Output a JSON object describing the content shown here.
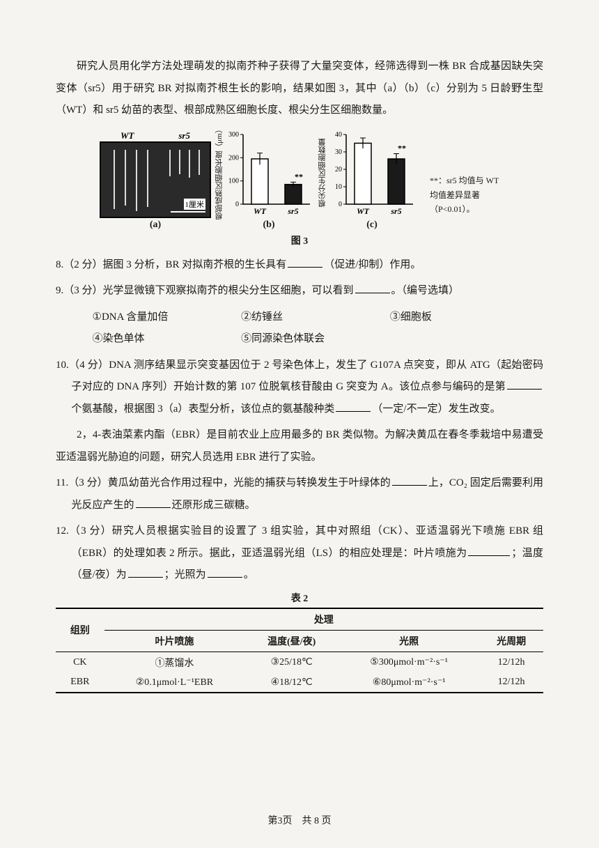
{
  "intro1": "研究人员用化学方法处理萌发的拟南芥种子获得了大量突变体，经筛选得到一株 BR 合成基因缺失突变体（sr5）用于研究 BR 对拟南芥根生长的影响，结果如图 3，其中（a）（b）（c）分别为 5 日龄野生型（WT）和 sr5 幼苗的表型、根部成熟区细胞长度、根尖分生区细胞数量。",
  "photo": {
    "wt": "WT",
    "sr5": "sr5",
    "scale": "1厘米"
  },
  "chart_b": {
    "ylabel": "根部成熟区细胞长度（μm）",
    "ymax": 300,
    "yticks": [
      0,
      100,
      200,
      300
    ],
    "categories": [
      "WT",
      "sr5"
    ],
    "values": [
      195,
      85
    ],
    "errors": [
      25,
      10
    ],
    "colors": [
      "#ffffff",
      "#1a1a1a"
    ],
    "sig": "**"
  },
  "chart_c": {
    "ylabel": "根尖分生区细胞数量",
    "ymax": 40,
    "yticks": [
      0,
      10,
      20,
      30,
      40
    ],
    "categories": [
      "WT",
      "sr5"
    ],
    "values": [
      35,
      26
    ],
    "errors": [
      3,
      3
    ],
    "colors": [
      "#ffffff",
      "#1a1a1a"
    ],
    "sig": "**"
  },
  "note": "**：sr5 均值与 WT 均值差异显著（P<0.01）。",
  "panel_labels": {
    "a": "(a)",
    "b": "(b)",
    "c": "(c)"
  },
  "fig_caption": "图 3",
  "q8": {
    "pre": "8.（2 分）据图 3 分析，BR 对拟南芥根的生长具有",
    "post": "（促进/抑制）作用。"
  },
  "q9": {
    "pre": "9.（3 分）光学显微镜下观察拟南芥的根尖分生区细胞，可以看到",
    "post": "。（编号选填）",
    "opts": [
      "①DNA 含量加倍",
      "②纺锤丝",
      "③细胞板",
      "④染色单体",
      "⑤同源染色体联会"
    ]
  },
  "q10": {
    "line1": "10.（4 分）DNA 测序结果显示突变基因位于 2 号染色体上，发生了 G107A 点突变，即从 ATG（起始密码子对应的 DNA 序列）开始计数的第 107 位脱氧核苷酸由 G 突变为 A。该位点参与编码的是第",
    "mid1": "个氨基酸，根据图 3（a）表型分析，该位点的氨基酸种类",
    "post": "（一定/不一定）发生改变。"
  },
  "intro2": "2，4-表油菜素内酯（EBR）是目前农业上应用最多的 BR 类似物。为解决黄瓜在春冬季栽培中易遭受亚适温弱光胁迫的问题，研究人员选用 EBR 进行了实验。",
  "q11": {
    "pre": "11.（3 分）黄瓜幼苗光合作用过程中，光能的捕获与转换发生于叶绿体的",
    "mid": "上，CO₂ 固定后需要利用光反应产生的",
    "post": "还原形成三碳糖。"
  },
  "q12": {
    "pre": "12.（3 分）研究人员根据实验目的设置了 3 组实验，其中对照组（CK）、亚适温弱光下喷施 EBR 组（EBR）的处理如表 2 所示。据此，亚适温弱光组（LS）的相应处理是：叶片喷施为",
    "mid1": "；温度（昼/夜）为",
    "mid2": "；光照为",
    "post": "。"
  },
  "tbl_caption": "表 2",
  "table": {
    "headers": {
      "group": "组别",
      "treat": "处理",
      "spray": "叶片喷施",
      "temp": "温度(昼/夜)",
      "light": "光照",
      "period": "光周期"
    },
    "rows": [
      {
        "g": "CK",
        "spray": "①蒸馏水",
        "temp": "③25/18℃",
        "light": "⑤300μmol·m⁻²·s⁻¹",
        "period": "12/12h"
      },
      {
        "g": "EBR",
        "spray": "②0.1μmol·L⁻¹EBR",
        "temp": "④18/12℃",
        "light": "⑥80μmol·m⁻²·s⁻¹",
        "period": "12/12h"
      }
    ]
  },
  "footer": "第3页　共 8 页"
}
